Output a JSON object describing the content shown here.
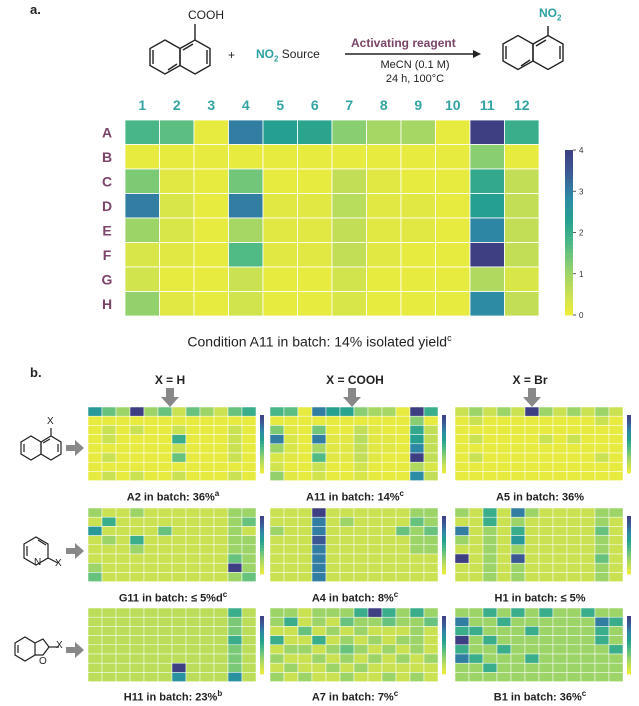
{
  "panel_a": {
    "label": "a.",
    "reactant_group": "COOH",
    "plus": "+",
    "no2_label": "NO",
    "no2_sub": "2",
    "source_label": " Source",
    "reagent_label": "Activating reagent",
    "conditions_1": "MeCN (0.1 M)",
    "conditions_2": "24 h, 100°C",
    "product_no2": "NO",
    "product_no2_sub": "2",
    "caption_main": "Condition A11 in batch: 14% isolated yield",
    "caption_sup": "c"
  },
  "panel_b": {
    "label": "b.",
    "column_headers": [
      "X = H",
      "X = COOH",
      "X = Br"
    ],
    "substrate_x": "X",
    "substrate_n": "N",
    "substrate_o": "O",
    "captions": [
      {
        "main": "A2 in batch: 36%",
        "sup": "a"
      },
      {
        "main": "A11 in batch: 14%",
        "sup": "c"
      },
      {
        "main": "A5 in batch: 36%",
        "sup": ""
      },
      {
        "main": "G11 in batch: ≤ 5%d",
        "sup": "c"
      },
      {
        "main": "A4 in batch: 8%",
        "sup": "c"
      },
      {
        "main": "H1 in batch: ≤ 5%",
        "sup": ""
      },
      {
        "main": "H11 in batch: 23%",
        "sup": "b"
      },
      {
        "main": "A7 in batch: 7%",
        "sup": "c"
      },
      {
        "main": "B1 in batch: 36%",
        "sup": "c"
      }
    ]
  },
  "colors": {
    "palette": [
      "#f0ed3a",
      "#c4df55",
      "#8fd06e",
      "#4fba86",
      "#25a08f",
      "#2d8aa6",
      "#3b5b96",
      "#3e3f82"
    ],
    "axis_label": "#7b4468",
    "column_label": "#36a3a3",
    "arrow": "#888888"
  },
  "chart_data": [
    {
      "type": "heatmap",
      "title": "",
      "rows": [
        "A",
        "B",
        "C",
        "D",
        "E",
        "F",
        "G",
        "H"
      ],
      "columns": [
        "1",
        "2",
        "3",
        "4",
        "5",
        "6",
        "7",
        "8",
        "9",
        "10",
        "11",
        "12"
      ],
      "values": [
        [
          1.8,
          1.6,
          0.1,
          3.0,
          2.3,
          2.2,
          1.2,
          0.9,
          0.9,
          0.1,
          4.0,
          2.0
        ],
        [
          0.1,
          0.1,
          0.1,
          0.1,
          0.1,
          0.1,
          0.1,
          0.1,
          0.1,
          0.1,
          1.2,
          0.1
        ],
        [
          1.3,
          0.2,
          0.1,
          1.4,
          0.1,
          0.1,
          0.6,
          0.2,
          0.1,
          0.1,
          2.1,
          0.6
        ],
        [
          3.0,
          0.3,
          0.1,
          3.0,
          0.2,
          0.2,
          0.7,
          0.2,
          0.2,
          0.1,
          2.3,
          0.6
        ],
        [
          1.0,
          0.3,
          0.1,
          0.9,
          0.2,
          0.2,
          0.6,
          0.2,
          0.2,
          0.1,
          2.9,
          0.6
        ],
        [
          0.3,
          0.2,
          0.1,
          1.7,
          0.2,
          0.2,
          0.6,
          0.2,
          0.1,
          0.1,
          4.0,
          0.6
        ],
        [
          0.4,
          0.1,
          0.1,
          0.5,
          0.1,
          0.1,
          0.4,
          0.1,
          0.1,
          0.1,
          0.8,
          0.3
        ],
        [
          1.1,
          0.2,
          0.1,
          0.4,
          0.1,
          0.1,
          0.3,
          0.1,
          0.1,
          0.1,
          2.8,
          0.6
        ]
      ],
      "vmin": 0,
      "vmax": 4,
      "colorbar_ticks": [
        "0",
        "1",
        "2",
        "3",
        "4"
      ]
    },
    {
      "type": "heatmap",
      "rows": 8,
      "columns": 12,
      "name": "X=H naphthalene",
      "values": [
        [
          2.5,
          1.5,
          1,
          4,
          1,
          1.5,
          0.5,
          1.5,
          1,
          0.5,
          1.5,
          2
        ],
        [
          0.1,
          0.1,
          0.1,
          0.1,
          0.1,
          0.1,
          0.1,
          0.1,
          0.1,
          0.1,
          0.1,
          0.1
        ],
        [
          0.1,
          0.5,
          0.1,
          0.5,
          0.1,
          0.1,
          0.5,
          0.1,
          0.1,
          0.1,
          0.5,
          0.1
        ],
        [
          0.1,
          0.5,
          0.1,
          0.1,
          0.1,
          0.1,
          2,
          0.1,
          0.1,
          0.1,
          0.5,
          0.1
        ],
        [
          0.1,
          0.1,
          0.1,
          0.1,
          0.1,
          0.1,
          0.5,
          0.1,
          0.1,
          0.1,
          0.5,
          0.1
        ],
        [
          0.1,
          0.5,
          0.1,
          0.1,
          0.1,
          0.1,
          1.5,
          0.1,
          0.1,
          0.1,
          0.5,
          0.1
        ],
        [
          0.1,
          0.1,
          0.1,
          0.1,
          0.1,
          0.1,
          0.1,
          0.1,
          0.1,
          0.1,
          0.1,
          0.1
        ],
        [
          0.1,
          0.5,
          0.1,
          0.5,
          0.1,
          0.1,
          0.5,
          0.1,
          0.1,
          0.1,
          0.5,
          0.1
        ]
      ]
    },
    {
      "type": "heatmap",
      "rows": 8,
      "columns": 12,
      "name": "X=COOH naphthalene",
      "values": [
        [
          1.8,
          1.6,
          0.1,
          3,
          2.3,
          2.2,
          1.2,
          0.9,
          0.9,
          0.1,
          4,
          2
        ],
        [
          0.1,
          0.1,
          0.1,
          0.1,
          0.1,
          0.1,
          0.1,
          0.1,
          0.1,
          0.1,
          1.2,
          0.1
        ],
        [
          1.3,
          0.2,
          0.1,
          1.4,
          0.1,
          0.1,
          0.6,
          0.2,
          0.1,
          0.1,
          2.1,
          0.6
        ],
        [
          3,
          0.3,
          0.1,
          3,
          0.2,
          0.2,
          0.7,
          0.2,
          0.2,
          0.1,
          2.3,
          0.6
        ],
        [
          1,
          0.3,
          0.1,
          0.9,
          0.2,
          0.2,
          0.6,
          0.2,
          0.2,
          0.1,
          2.9,
          0.6
        ],
        [
          0.3,
          0.2,
          0.1,
          1.7,
          0.2,
          0.2,
          0.6,
          0.2,
          0.1,
          0.1,
          4,
          0.6
        ],
        [
          0.4,
          0.1,
          0.1,
          0.5,
          0.1,
          0.1,
          0.4,
          0.1,
          0.1,
          0.1,
          0.8,
          0.3
        ],
        [
          1.1,
          0.2,
          0.1,
          0.4,
          0.1,
          0.1,
          0.3,
          0.1,
          0.1,
          0.1,
          2.8,
          0.6
        ]
      ]
    },
    {
      "type": "heatmap",
      "rows": 8,
      "columns": 12,
      "name": "X=Br naphthalene",
      "values": [
        [
          0.5,
          1,
          0.5,
          1,
          0.5,
          4,
          1,
          0.5,
          1,
          0.5,
          1,
          0.5
        ],
        [
          0.1,
          0.5,
          0.1,
          0.1,
          0.1,
          0.1,
          0.1,
          0.1,
          0.1,
          0.1,
          0.5,
          0.1
        ],
        [
          0.1,
          0.1,
          0.1,
          0.1,
          0.1,
          0.1,
          0.1,
          0.1,
          0.1,
          0.1,
          0.1,
          0.1
        ],
        [
          0.1,
          0.5,
          0.1,
          0.1,
          0.1,
          0.1,
          0.5,
          0.1,
          0.5,
          0.1,
          0.1,
          0.1
        ],
        [
          0.1,
          0.1,
          0.1,
          0.1,
          0.1,
          0.1,
          0.1,
          0.1,
          0.1,
          0.1,
          0.1,
          0.1
        ],
        [
          0.1,
          0.5,
          0.1,
          0.1,
          0.1,
          0.1,
          0.1,
          0.1,
          0.1,
          0.1,
          0.5,
          0.1
        ],
        [
          0.1,
          0.1,
          0.1,
          0.1,
          0.1,
          0.1,
          0.1,
          0.1,
          0.1,
          0.1,
          0.1,
          0.1
        ],
        [
          0.1,
          0.1,
          0.1,
          0.1,
          0.1,
          0.1,
          0.1,
          0.1,
          0.1,
          0.1,
          0.1,
          0.1
        ]
      ]
    },
    {
      "type": "heatmap",
      "rows": 8,
      "columns": 12,
      "name": "X=H pyridine",
      "values": [
        [
          1,
          0.5,
          0.5,
          1,
          0.5,
          0.5,
          0.5,
          0.5,
          0.5,
          0.5,
          1,
          1
        ],
        [
          0.5,
          2,
          0.5,
          0.5,
          0.5,
          0.5,
          0.5,
          0.5,
          0.5,
          0.5,
          1,
          1.5
        ],
        [
          2.5,
          0.5,
          0.5,
          0.5,
          0.5,
          1.5,
          0.5,
          0.5,
          0.5,
          0.5,
          1,
          0.5
        ],
        [
          0.5,
          1,
          0.5,
          2,
          0.5,
          0.5,
          0.5,
          0.5,
          0.5,
          0.5,
          1,
          1
        ],
        [
          0.5,
          0.5,
          0.5,
          1,
          0.5,
          0.5,
          0.5,
          0.5,
          0.5,
          0.5,
          1,
          1
        ],
        [
          0.5,
          0.5,
          0.5,
          0.5,
          0.5,
          0.5,
          0.5,
          0.5,
          0.5,
          0.5,
          1.5,
          1
        ],
        [
          1,
          0.5,
          0.5,
          0.5,
          0.5,
          0.5,
          0.5,
          0.5,
          0.5,
          0.5,
          4,
          1
        ],
        [
          1.5,
          0.5,
          0.5,
          0.5,
          0.5,
          0.5,
          0.5,
          0.5,
          0.5,
          0.5,
          1,
          1.5
        ]
      ]
    },
    {
      "type": "heatmap",
      "rows": 8,
      "columns": 12,
      "name": "X=COOH pyridine",
      "values": [
        [
          0.5,
          0.5,
          0.5,
          4,
          0.5,
          0.5,
          0.5,
          0.5,
          0.5,
          0.5,
          1,
          1
        ],
        [
          0.5,
          0.5,
          0.5,
          3,
          0.5,
          1,
          0.5,
          0.5,
          0.5,
          0.5,
          1.5,
          1
        ],
        [
          1,
          0.5,
          0.5,
          3,
          0.5,
          0.5,
          0.5,
          0.5,
          0.5,
          1.5,
          1,
          1.5
        ],
        [
          0.5,
          0.5,
          0.5,
          3.5,
          0.5,
          0.5,
          0.5,
          0.5,
          0.5,
          0.5,
          1,
          1
        ],
        [
          0.5,
          0.5,
          0.5,
          3,
          0.5,
          0.5,
          0.5,
          0.5,
          0.5,
          0.5,
          1,
          1
        ],
        [
          0.5,
          0.5,
          0.5,
          3,
          0.5,
          0.5,
          0.5,
          0.5,
          0.5,
          0.5,
          0.5,
          0.5
        ],
        [
          0.5,
          0.5,
          0.5,
          3,
          0.5,
          0.5,
          0.5,
          0.5,
          0.5,
          0.5,
          0.5,
          0.5
        ],
        [
          0.5,
          0.5,
          0.5,
          3,
          0.5,
          0.5,
          0.5,
          0.5,
          0.5,
          0.5,
          0.5,
          0.5
        ]
      ]
    },
    {
      "type": "heatmap",
      "rows": 8,
      "columns": 12,
      "name": "X=Br pyridine",
      "values": [
        [
          1,
          0.5,
          2,
          0.5,
          3,
          1,
          0.5,
          0.5,
          0.5,
          0.5,
          1,
          1
        ],
        [
          0.5,
          0.5,
          2,
          0.5,
          1,
          0.5,
          0.5,
          0.5,
          0.5,
          0.5,
          1,
          0.5
        ],
        [
          3,
          0.5,
          1,
          0.5,
          2,
          0.5,
          0.5,
          0.5,
          0.5,
          0.5,
          1.5,
          0.5
        ],
        [
          1,
          0.5,
          1,
          0.5,
          2.5,
          0.5,
          0.5,
          0.5,
          0.5,
          0.5,
          1,
          0.5
        ],
        [
          0.5,
          0.5,
          1,
          0.5,
          1,
          0.5,
          0.5,
          0.5,
          0.5,
          0.5,
          1,
          0.5
        ],
        [
          4,
          0.5,
          1,
          0.5,
          3.5,
          0.5,
          0.5,
          0.5,
          0.5,
          0.5,
          1.5,
          0.5
        ],
        [
          0.5,
          0.5,
          1,
          0.5,
          1,
          0.5,
          0.5,
          0.5,
          0.5,
          0.5,
          1,
          0.5
        ],
        [
          0.5,
          0.5,
          1,
          0.5,
          1,
          0.5,
          0.5,
          0.5,
          0.5,
          0.5,
          1,
          0.5
        ]
      ]
    },
    {
      "type": "heatmap",
      "rows": 8,
      "columns": 12,
      "name": "X=H benzofuran",
      "values": [
        [
          0.5,
          0.5,
          0.5,
          0.5,
          0.5,
          0.5,
          0.5,
          0.5,
          0.5,
          0.5,
          1.5,
          0.5
        ],
        [
          0.5,
          0.5,
          0.5,
          0.5,
          0.5,
          0.5,
          0.5,
          0.5,
          0.5,
          0.5,
          1,
          0.5
        ],
        [
          0.5,
          0.5,
          0.5,
          0.5,
          0.5,
          0.5,
          0.5,
          0.5,
          0.5,
          0.5,
          1,
          0.5
        ],
        [
          0.5,
          0.5,
          0.5,
          0.5,
          0.5,
          0.5,
          0.5,
          0.5,
          0.5,
          0.5,
          1.5,
          0.5
        ],
        [
          0.5,
          0.5,
          0.5,
          0.5,
          0.5,
          0.5,
          0.5,
          0.5,
          0.5,
          0.5,
          1,
          0.5
        ],
        [
          0.5,
          0.5,
          0.5,
          0.5,
          0.5,
          0.5,
          0.5,
          0.5,
          0.5,
          0.5,
          1,
          0.5
        ],
        [
          0.5,
          0.5,
          0.5,
          0.5,
          0.5,
          0.5,
          3,
          0.5,
          0.5,
          0.5,
          1,
          0.5
        ],
        [
          0.5,
          0.5,
          0.5,
          0.5,
          0.5,
          0.5,
          2,
          0.5,
          0.5,
          0.5,
          2,
          0.5
        ]
      ]
    },
    {
      "type": "heatmap",
      "rows": 8,
      "columns": 12,
      "name": "X=COOH benzofuran",
      "values": [
        [
          1,
          1,
          0.5,
          1,
          1,
          1,
          2,
          4,
          2,
          1,
          2,
          1
        ],
        [
          1,
          2,
          0.5,
          1,
          0.5,
          1.5,
          1,
          1,
          1.5,
          1,
          1,
          1.5
        ],
        [
          0.5,
          0.5,
          1.5,
          0.5,
          1,
          0.5,
          1,
          0.5,
          0.5,
          0.5,
          1,
          0.5
        ],
        [
          2,
          0.5,
          0.5,
          2,
          0.5,
          1,
          0.5,
          1,
          0.5,
          1,
          1,
          0.5
        ],
        [
          0.5,
          1,
          1,
          0.5,
          1,
          1.5,
          1,
          0.5,
          1,
          0.5,
          1,
          0.5
        ],
        [
          1,
          0.5,
          0.5,
          1,
          0.5,
          1,
          0.5,
          1,
          0.5,
          1,
          0.5,
          1
        ],
        [
          0.5,
          1,
          0.5,
          0.5,
          1,
          0.5,
          1,
          0.5,
          0.5,
          0.5,
          0.5,
          0.5
        ],
        [
          1,
          0.5,
          1,
          0.5,
          0.5,
          1,
          0.5,
          0.5,
          1,
          0.5,
          1,
          0.5
        ]
      ]
    },
    {
      "type": "heatmap",
      "rows": 8,
      "columns": 12,
      "name": "X=Br benzofuran",
      "values": [
        [
          1,
          1,
          2,
          1,
          2,
          1,
          2,
          1,
          1,
          2,
          1,
          1
        ],
        [
          3,
          1,
          1,
          2,
          1,
          1,
          1,
          1,
          1,
          1,
          3,
          2
        ],
        [
          2,
          2,
          1,
          1,
          1,
          2,
          1,
          1,
          1,
          1,
          2,
          1
        ],
        [
          4,
          1,
          2,
          1,
          1,
          1,
          1,
          1,
          1,
          1,
          2,
          1
        ],
        [
          2,
          1,
          1,
          2,
          1,
          1,
          1,
          1,
          1,
          1,
          1,
          2
        ],
        [
          3,
          2,
          1,
          1,
          1,
          2,
          1,
          1,
          1,
          1,
          1,
          1
        ],
        [
          1,
          1,
          2,
          1,
          1,
          1,
          1,
          1,
          1,
          1,
          1,
          1
        ],
        [
          1,
          1,
          1,
          1,
          1,
          1,
          1,
          1,
          1,
          1,
          1,
          1
        ]
      ]
    }
  ]
}
